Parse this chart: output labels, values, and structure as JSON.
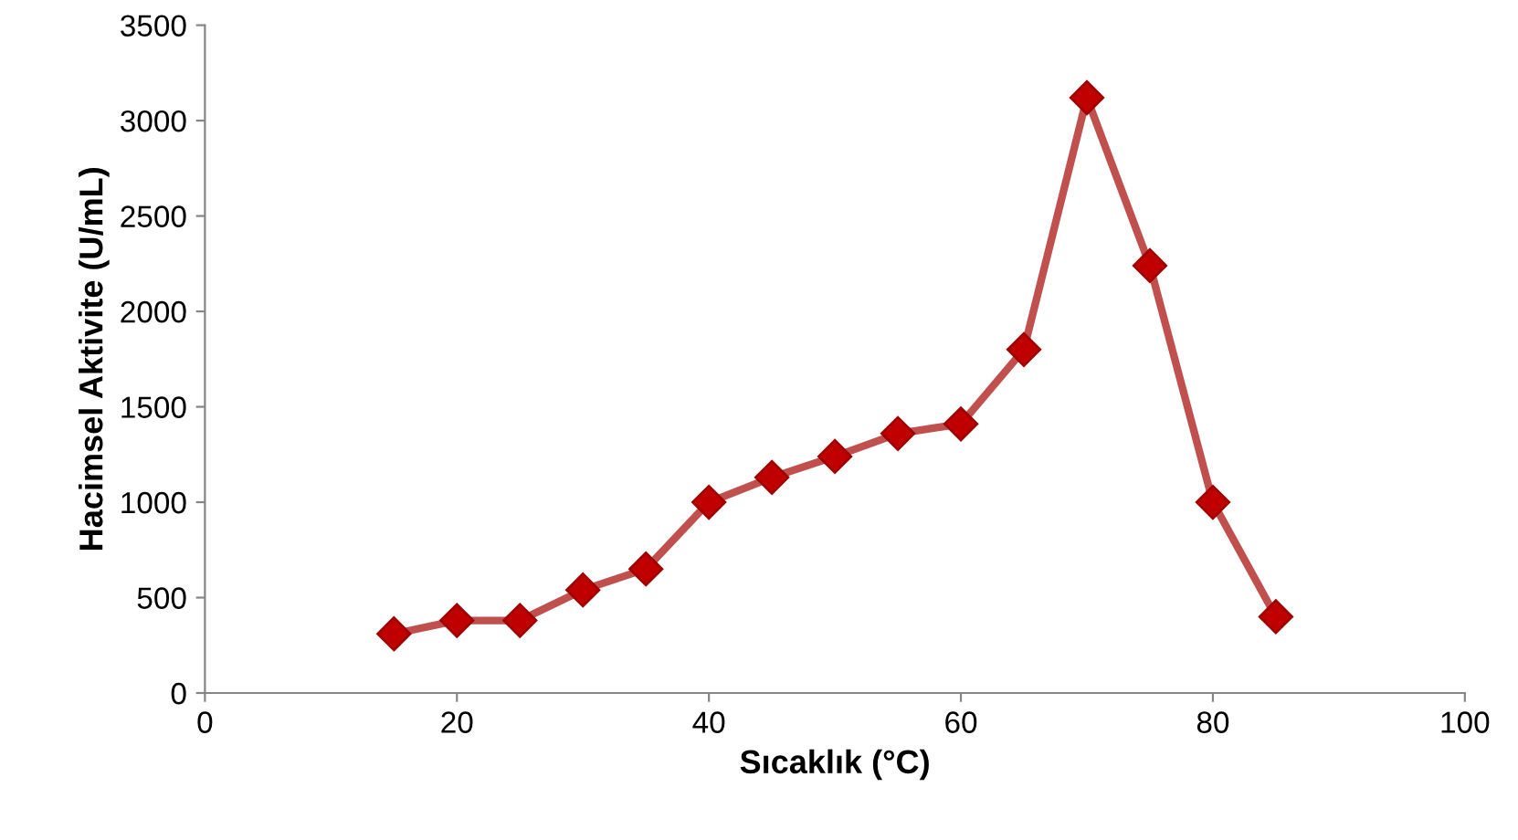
{
  "chart_data": {
    "type": "line",
    "xlabel": "Sıcaklık (°C)",
    "ylabel": "Hacimsel Aktivite (U/mL)",
    "x": [
      15,
      20,
      25,
      30,
      35,
      40,
      45,
      50,
      55,
      60,
      65,
      70,
      75,
      80,
      85
    ],
    "series": [
      {
        "color": "#c0504d",
        "values": [
          310,
          380,
          380,
          540,
          650,
          1000,
          1130,
          1240,
          1360,
          1410,
          1800,
          3120,
          2240,
          1000,
          400
        ]
      }
    ],
    "marker": "diamond",
    "line_style": "solid",
    "grid": false,
    "xlim": [
      0,
      100
    ],
    "xticks": [
      0,
      20,
      40,
      60,
      80,
      100
    ],
    "ylim": [
      0,
      3500
    ],
    "yticks": [
      0,
      500,
      1000,
      1500,
      2000,
      2500,
      3000,
      3500
    ]
  }
}
